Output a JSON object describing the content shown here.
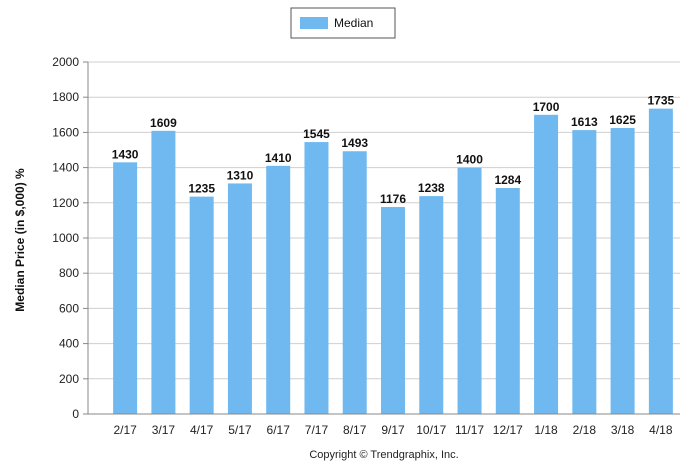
{
  "chart_data": {
    "type": "bar",
    "categories": [
      "2/17",
      "3/17",
      "4/17",
      "5/17",
      "6/17",
      "7/17",
      "8/17",
      "9/17",
      "10/17",
      "11/17",
      "12/17",
      "1/18",
      "2/18",
      "3/18",
      "4/18"
    ],
    "series": [
      {
        "name": "Median",
        "values": [
          1430,
          1609,
          1235,
          1310,
          1410,
          1545,
          1493,
          1176,
          1238,
          1400,
          1284,
          1700,
          1613,
          1625,
          1735
        ]
      }
    ],
    "ylabel": "Median Price (in $,000) %",
    "xlabel": "",
    "ylim": [
      0,
      2000
    ],
    "yticks": [
      0,
      200,
      400,
      600,
      800,
      1000,
      1200,
      1400,
      1600,
      1800,
      2000
    ],
    "grid": true,
    "legend_position": "top-center",
    "bar_color": "#6FB9F0",
    "footer": "Copyright © Trendgraphix, Inc."
  }
}
